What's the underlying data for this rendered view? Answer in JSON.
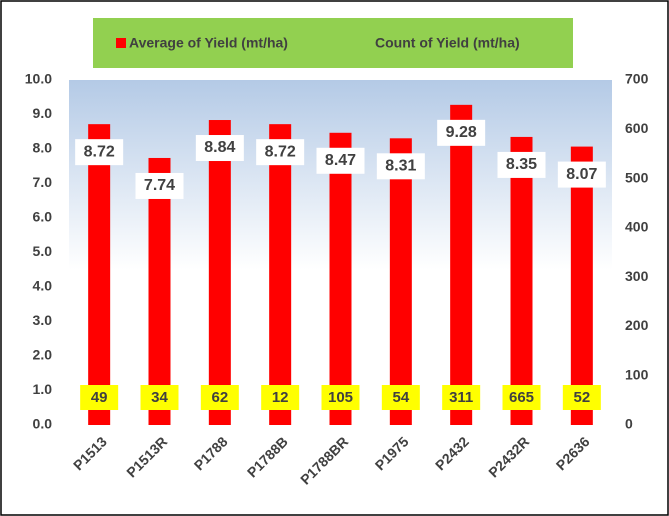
{
  "chart_data": {
    "type": "bar",
    "categories": [
      "P1513",
      "P1513R",
      "P1788",
      "P1788B",
      "P1788BR",
      "P1975",
      "P2432",
      "P2432R",
      "P2636"
    ],
    "series": [
      {
        "name": "Average of Yield (mt/ha)",
        "color": "#ff0000",
        "values": [
          8.72,
          7.74,
          8.84,
          8.72,
          8.47,
          8.31,
          9.28,
          8.35,
          8.07
        ]
      },
      {
        "name": "Count of Yield (mt/ha)",
        "axis": "y2",
        "values": [
          49,
          34,
          62,
          12,
          105,
          54,
          311,
          665,
          52
        ]
      }
    ],
    "ylim": [
      0,
      10
    ],
    "yticks": [
      {
        "value": 0,
        "label": "0.0"
      },
      {
        "value": 1,
        "label": "1.0"
      },
      {
        "value": 2,
        "label": "2.0"
      },
      {
        "value": 3,
        "label": "3.0"
      },
      {
        "value": 4,
        "label": "4.0"
      },
      {
        "value": 5,
        "label": "5.0"
      },
      {
        "value": 6,
        "label": "6.0"
      },
      {
        "value": 7,
        "label": "7.0"
      },
      {
        "value": 8,
        "label": "8.0"
      },
      {
        "value": 9,
        "label": "9.0"
      },
      {
        "value": 10,
        "label": "10.0"
      }
    ],
    "y2lim": [
      0,
      700
    ],
    "y2ticks": [
      0,
      100,
      200,
      300,
      400,
      500,
      600,
      700
    ],
    "legend": "top"
  }
}
